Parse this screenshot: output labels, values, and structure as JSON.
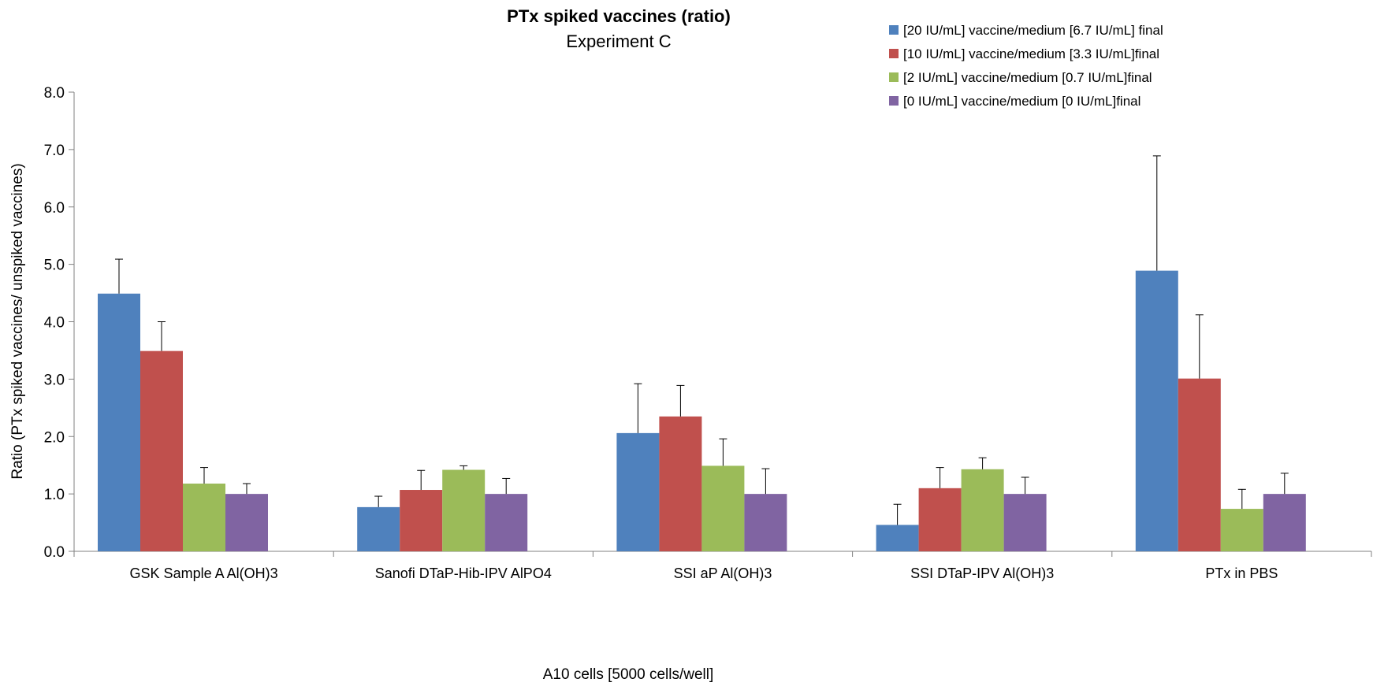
{
  "chart_data": {
    "type": "bar",
    "title": "PTx spiked vaccines (ratio)",
    "subtitle": "Experiment C",
    "xlabel": "A10 cells [5000 cells/well]",
    "ylabel": "Ratio (PTx spiked vaccines/ unspiked vaccines)",
    "ylim": [
      0,
      8
    ],
    "yticks": [
      "0.0",
      "1.0",
      "2.0",
      "3.0",
      "4.0",
      "5.0",
      "6.0",
      "7.0",
      "8.0"
    ],
    "grid": false,
    "legend_position": "top-right",
    "categories": [
      "GSK Sample A Al(OH)3",
      "Sanofi DTaP-Hib-IPV AlPO4",
      "SSI aP Al(OH)3",
      "SSI DTaP-IPV Al(OH)3",
      "PTx in PBS"
    ],
    "series": [
      {
        "name": "[20 IU/mL] vaccine/medium [6.7 IU/mL] final",
        "color": "#4F81BD",
        "values": [
          4.49,
          0.77,
          2.06,
          0.46,
          4.89
        ],
        "errors": [
          0.6,
          0.19,
          0.86,
          0.36,
          2.0
        ]
      },
      {
        "name": "[10 IU/mL] vaccine/medium [3.3 IU/mL]final",
        "color": "#C0504D",
        "values": [
          3.49,
          1.07,
          2.35,
          1.1,
          3.01
        ],
        "errors": [
          0.51,
          0.34,
          0.54,
          0.36,
          1.11
        ]
      },
      {
        "name": "[2 IU/mL] vaccine/medium [0.7 IU/mL]final",
        "color": "#9BBB59",
        "values": [
          1.18,
          1.42,
          1.49,
          1.43,
          0.74
        ],
        "errors": [
          0.28,
          0.07,
          0.47,
          0.2,
          0.34
        ]
      },
      {
        "name": "[0 IU/mL] vaccine/medium [0 IU/mL]final",
        "color": "#8064A2",
        "values": [
          1.0,
          1.0,
          1.0,
          1.0,
          1.0
        ],
        "errors": [
          0.18,
          0.27,
          0.44,
          0.29,
          0.36
        ]
      }
    ]
  }
}
